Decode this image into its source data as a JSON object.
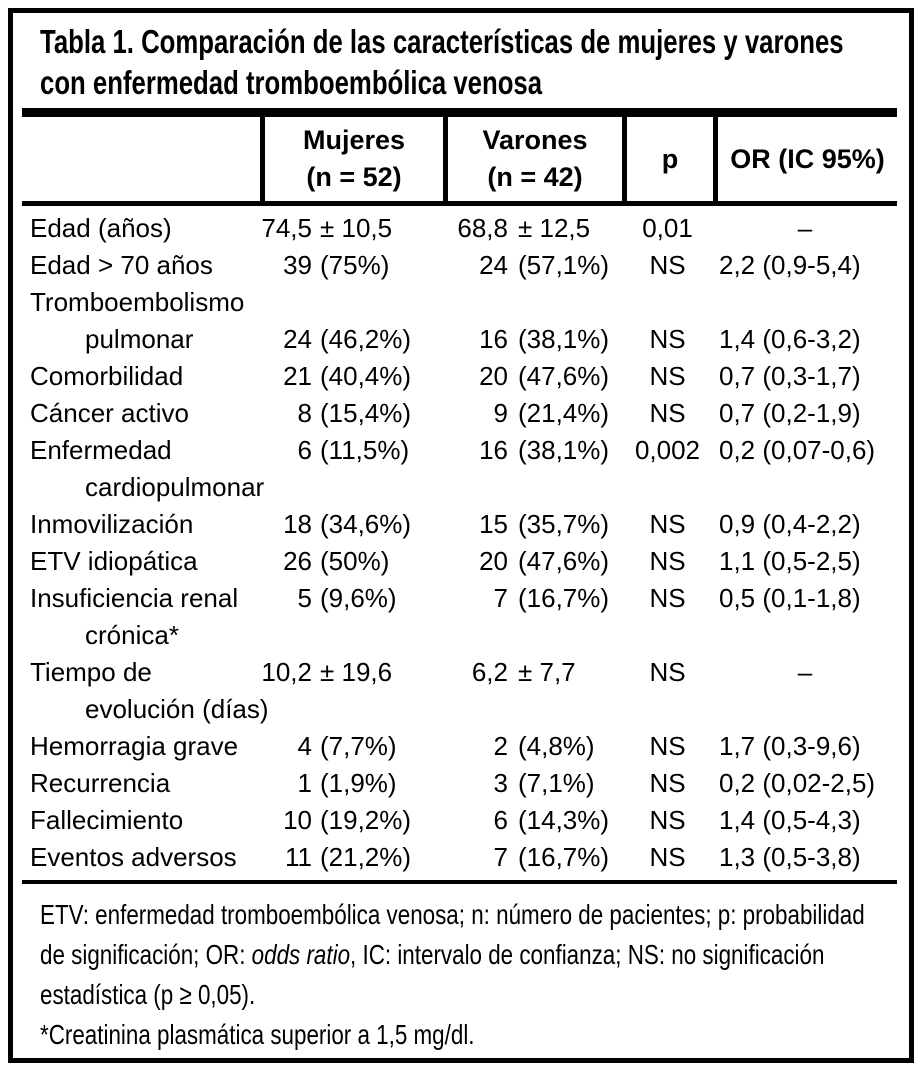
{
  "colors": {
    "text": "#000000",
    "background": "#ffffff",
    "border": "#000000"
  },
  "title": {
    "line1": "Tabla 1. Comparación de las características de mujeres y varones",
    "line2": "con enfermedad tromboembólica venosa"
  },
  "header": {
    "mujeres_line1": "Mujeres",
    "mujeres_line2": "(n = 52)",
    "varones_line1": "Varones",
    "varones_line2": "(n = 42)",
    "p": "p",
    "or": "OR (IC 95%)"
  },
  "rows": [
    {
      "label": "Edad (años)",
      "indent": false,
      "m_num": "74,5",
      "m_rest": "± 10,5",
      "v_num": "68,8",
      "v_rest": "± 12,5",
      "p": "0,01",
      "or": "–",
      "or_center": true
    },
    {
      "label": "Edad > 70 años",
      "indent": false,
      "m_num": "39",
      "m_rest": "(75%)",
      "v_num": "24",
      "v_rest": "(57,1%)",
      "p": "NS",
      "or": "2,2 (0,9-5,4)",
      "or_center": false
    },
    {
      "label": "Tromboembolismo",
      "indent": false,
      "m_num": "",
      "m_rest": "",
      "v_num": "",
      "v_rest": "",
      "p": "",
      "or": "",
      "or_center": false
    },
    {
      "label": "pulmonar",
      "indent": true,
      "m_num": "24",
      "m_rest": "(46,2%)",
      "v_num": "16",
      "v_rest": "(38,1%)",
      "p": "NS",
      "or": "1,4 (0,6-3,2)",
      "or_center": false
    },
    {
      "label": "Comorbilidad",
      "indent": false,
      "m_num": "21",
      "m_rest": "(40,4%)",
      "v_num": "20",
      "v_rest": "(47,6%)",
      "p": "NS",
      "or": "0,7 (0,3-1,7)",
      "or_center": false
    },
    {
      "label": "Cáncer activo",
      "indent": false,
      "m_num": "8",
      "m_rest": "(15,4%)",
      "v_num": "9",
      "v_rest": "(21,4%)",
      "p": "NS",
      "or": "0,7 (0,2-1,9)",
      "or_center": false
    },
    {
      "label": "Enfermedad",
      "indent": false,
      "m_num": "6",
      "m_rest": "(11,5%)",
      "v_num": "16",
      "v_rest": "(38,1%)",
      "p": "0,002",
      "or": "0,2 (0,07-0,6)",
      "or_center": false
    },
    {
      "label": "cardiopulmonar",
      "indent": true,
      "m_num": "",
      "m_rest": "",
      "v_num": "",
      "v_rest": "",
      "p": "",
      "or": "",
      "or_center": false
    },
    {
      "label": "Inmovilización",
      "indent": false,
      "m_num": "18",
      "m_rest": "(34,6%)",
      "v_num": "15",
      "v_rest": "(35,7%)",
      "p": "NS",
      "or": "0,9 (0,4-2,2)",
      "or_center": false
    },
    {
      "label": "ETV idiopática",
      "indent": false,
      "m_num": "26",
      "m_rest": "(50%)",
      "v_num": "20",
      "v_rest": "(47,6%)",
      "p": "NS",
      "or": "1,1 (0,5-2,5)",
      "or_center": false
    },
    {
      "label": "Insuficiencia renal",
      "indent": false,
      "m_num": "5",
      "m_rest": "(9,6%)",
      "v_num": "7",
      "v_rest": "(16,7%)",
      "p": "NS",
      "or": "0,5 (0,1-1,8)",
      "or_center": false
    },
    {
      "label": "crónica*",
      "indent": true,
      "m_num": "",
      "m_rest": "",
      "v_num": "",
      "v_rest": "",
      "p": "",
      "or": "",
      "or_center": false
    },
    {
      "label": "Tiempo de",
      "indent": false,
      "m_num": "10,2",
      "m_rest": "± 19,6",
      "v_num": "6,2",
      "v_rest": "± 7,7",
      "p": "NS",
      "or": "–",
      "or_center": true
    },
    {
      "label": "evolución (días)",
      "indent": true,
      "m_num": "",
      "m_rest": "",
      "v_num": "",
      "v_rest": "",
      "p": "",
      "or": "",
      "or_center": false
    },
    {
      "label": "Hemorragia grave",
      "indent": false,
      "m_num": "4",
      "m_rest": "(7,7%)",
      "v_num": "2",
      "v_rest": "(4,8%)",
      "p": "NS",
      "or": "1,7 (0,3-9,6)",
      "or_center": false
    },
    {
      "label": "Recurrencia",
      "indent": false,
      "m_num": "1",
      "m_rest": "(1,9%)",
      "v_num": "3",
      "v_rest": "(7,1%)",
      "p": "NS",
      "or": "0,2 (0,02-2,5)",
      "or_center": false
    },
    {
      "label": "Fallecimiento",
      "indent": false,
      "m_num": "10",
      "m_rest": "(19,2%)",
      "v_num": "6",
      "v_rest": "(14,3%)",
      "p": "NS",
      "or": "1,4 (0,5-4,3)",
      "or_center": false
    },
    {
      "label": "Eventos adversos",
      "indent": false,
      "m_num": "11",
      "m_rest": "(21,2%)",
      "v_num": "7",
      "v_rest": "(16,7%)",
      "p": "NS",
      "or": "1,3 (0,5-3,8)",
      "or_center": false
    }
  ],
  "footnotes": {
    "line1": "ETV: enfermedad tromboembólica venosa; n: número de pacientes; p: probabilidad",
    "line2_pre": "de significación; OR: ",
    "line2_italic": "odds ratio",
    "line2_post": ", IC: intervalo de confianza; NS: no significación",
    "line3": "estadística (p ≥ 0,05).",
    "line4": "*Creatinina plasmática superior a 1,5 mg/dl."
  }
}
